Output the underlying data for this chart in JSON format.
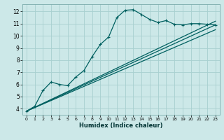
{
  "title": "",
  "xlabel": "Humidex (Indice chaleur)",
  "bg_color": "#cce8e8",
  "line_color": "#006060",
  "grid_color": "#a8d0d0",
  "xlim": [
    -0.5,
    23.5
  ],
  "ylim": [
    3.5,
    12.6
  ],
  "xticks": [
    0,
    1,
    2,
    3,
    4,
    5,
    6,
    7,
    8,
    9,
    10,
    11,
    12,
    13,
    14,
    15,
    16,
    17,
    18,
    19,
    20,
    21,
    22,
    23
  ],
  "yticks": [
    4,
    5,
    6,
    7,
    8,
    9,
    10,
    11,
    12
  ],
  "main_x": [
    0,
    1,
    2,
    3,
    4,
    5,
    6,
    7,
    8,
    9,
    10,
    11,
    12,
    13,
    14,
    15,
    16,
    17,
    18,
    19,
    20,
    21,
    22,
    23
  ],
  "main_y": [
    3.8,
    4.2,
    5.5,
    6.2,
    6.0,
    5.9,
    6.6,
    7.15,
    8.3,
    9.3,
    9.9,
    11.5,
    12.1,
    12.15,
    11.75,
    11.35,
    11.1,
    11.25,
    10.95,
    10.9,
    11.0,
    11.0,
    10.95,
    10.9
  ],
  "trend1_x": [
    0,
    23
  ],
  "trend1_y": [
    3.8,
    10.5
  ],
  "trend2_x": [
    0,
    23
  ],
  "trend2_y": [
    3.8,
    10.9
  ],
  "trend3_x": [
    0,
    23
  ],
  "trend3_y": [
    3.8,
    11.2
  ],
  "marker": "+"
}
